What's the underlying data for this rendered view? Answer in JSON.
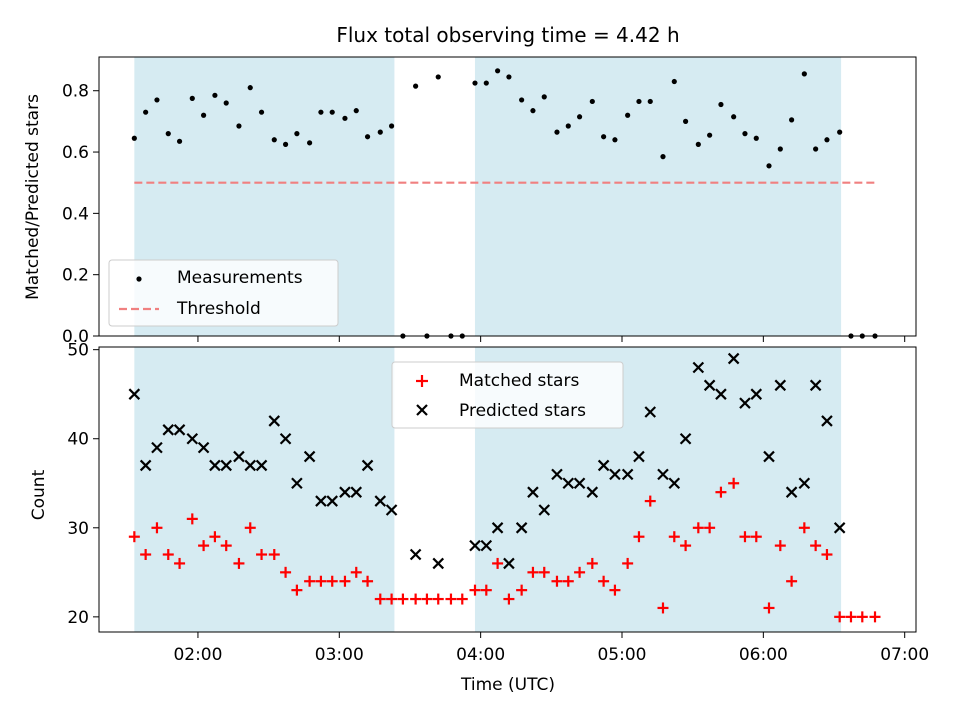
{
  "figure": {
    "title": "Flux total observing time = 4.42 h",
    "xlabel": "Time (UTC)",
    "xticks": [
      {
        "t": 2.0,
        "label": "02:00"
      },
      {
        "t": 3.0,
        "label": "03:00"
      },
      {
        "t": 4.0,
        "label": "04:00"
      },
      {
        "t": 5.0,
        "label": "05:00"
      },
      {
        "t": 6.0,
        "label": "06:00"
      },
      {
        "t": 7.0,
        "label": "07:00"
      }
    ],
    "xlim": [
      1.3,
      7.08
    ],
    "shaded_intervals": [
      [
        1.55,
        3.39
      ],
      [
        3.96,
        6.55
      ]
    ],
    "shade_color": "#add8e6"
  },
  "chart_data": [
    {
      "type": "scatter",
      "panel": "top",
      "ylabel": "Matched/Predicted stars",
      "ylim": [
        0,
        0.91
      ],
      "yticks": [
        {
          "v": 0.0,
          "label": "0.0"
        },
        {
          "v": 0.2,
          "label": "0.2"
        },
        {
          "v": 0.4,
          "label": "0.4"
        },
        {
          "v": 0.6,
          "label": "0.6"
        },
        {
          "v": 0.8,
          "label": "0.8"
        }
      ],
      "legend": {
        "position": "lower-left",
        "measurements_label": "Measurements",
        "threshold_label": "Threshold"
      },
      "threshold": {
        "value": 0.5,
        "x_range": [
          1.55,
          6.8
        ],
        "color": "#f08080"
      },
      "measurements": {
        "color": "#000000",
        "x": [
          1.55,
          1.63,
          1.71,
          1.79,
          1.87,
          1.96,
          2.04,
          2.12,
          2.2,
          2.29,
          2.37,
          2.45,
          2.54,
          2.62,
          2.7,
          2.79,
          2.87,
          2.95,
          3.04,
          3.12,
          3.2,
          3.29,
          3.37,
          3.45,
          3.54,
          3.62,
          3.7,
          3.79,
          3.87,
          3.96,
          4.04,
          4.12,
          4.2,
          4.29,
          4.37,
          4.45,
          4.54,
          4.62,
          4.7,
          4.79,
          4.87,
          4.95,
          5.04,
          5.12,
          5.2,
          5.29,
          5.37,
          5.45,
          5.54,
          5.62,
          5.7,
          5.79,
          5.87,
          5.95,
          6.04,
          6.12,
          6.2,
          6.29,
          6.37,
          6.45,
          6.54,
          6.62,
          6.7,
          6.79
        ],
        "y": [
          0.645,
          0.73,
          0.77,
          0.66,
          0.635,
          0.775,
          0.72,
          0.785,
          0.76,
          0.685,
          0.81,
          0.73,
          0.64,
          0.625,
          0.66,
          0.63,
          0.73,
          0.73,
          0.71,
          0.735,
          0.65,
          0.665,
          0.685,
          0.0,
          0.815,
          0.0,
          0.845,
          0.0,
          0.0,
          0.825,
          0.825,
          0.865,
          0.845,
          0.77,
          0.735,
          0.78,
          0.665,
          0.685,
          0.715,
          0.765,
          0.65,
          0.64,
          0.72,
          0.765,
          0.765,
          0.585,
          0.83,
          0.7,
          0.625,
          0.655,
          0.755,
          0.715,
          0.66,
          0.645,
          0.555,
          0.61,
          0.705,
          0.855,
          0.61,
          0.64,
          0.665,
          0.0,
          0.0,
          0.0
        ]
      }
    },
    {
      "type": "scatter",
      "panel": "bottom",
      "ylabel": "Count",
      "ylim": [
        18.3,
        50.3
      ],
      "yticks": [
        {
          "v": 20,
          "label": "20"
        },
        {
          "v": 30,
          "label": "30"
        },
        {
          "v": 40,
          "label": "40"
        },
        {
          "v": 50,
          "label": "50"
        }
      ],
      "legend": {
        "position": "upper-center"
      },
      "series": [
        {
          "name": "Matched stars",
          "marker": "plus",
          "color": "#ff0000",
          "x": [
            1.55,
            1.63,
            1.71,
            1.79,
            1.87,
            1.96,
            2.04,
            2.12,
            2.2,
            2.29,
            2.37,
            2.45,
            2.54,
            2.62,
            2.7,
            2.79,
            2.87,
            2.95,
            3.04,
            3.12,
            3.2,
            3.29,
            3.37,
            3.45,
            3.54,
            3.62,
            3.7,
            3.79,
            3.87,
            3.96,
            4.04,
            4.12,
            4.2,
            4.29,
            4.37,
            4.45,
            4.54,
            4.62,
            4.7,
            4.79,
            4.87,
            4.95,
            5.04,
            5.12,
            5.2,
            5.29,
            5.37,
            5.45,
            5.54,
            5.62,
            5.7,
            5.79,
            5.87,
            5.95,
            6.04,
            6.12,
            6.2,
            6.29,
            6.37,
            6.45,
            6.54,
            6.62,
            6.7,
            6.79
          ],
          "values": [
            29,
            27,
            30,
            27,
            26,
            31,
            28,
            29,
            28,
            26,
            30,
            27,
            27,
            25,
            23,
            24,
            24,
            24,
            24,
            25,
            24,
            22,
            22,
            22,
            22,
            22,
            22,
            22,
            22,
            23,
            23,
            26,
            22,
            23,
            25,
            25,
            24,
            24,
            25,
            26,
            24,
            23,
            26,
            29,
            33,
            21,
            29,
            28,
            30,
            30,
            34,
            35,
            29,
            29,
            21,
            28,
            24,
            30,
            28,
            27,
            20,
            20,
            20,
            20
          ]
        },
        {
          "name": "Predicted stars",
          "marker": "x",
          "color": "#000000",
          "x": [
            1.55,
            1.63,
            1.71,
            1.79,
            1.87,
            1.96,
            2.04,
            2.12,
            2.2,
            2.29,
            2.37,
            2.45,
            2.54,
            2.62,
            2.7,
            2.79,
            2.87,
            2.95,
            3.04,
            3.12,
            3.2,
            3.29,
            3.37,
            3.54,
            3.7,
            3.96,
            4.04,
            4.12,
            4.2,
            4.29,
            4.37,
            4.45,
            4.54,
            4.62,
            4.7,
            4.79,
            4.87,
            4.95,
            5.04,
            5.12,
            5.2,
            5.29,
            5.37,
            5.45,
            5.54,
            5.62,
            5.7,
            5.79,
            5.87,
            5.95,
            6.04,
            6.12,
            6.2,
            6.29,
            6.37,
            6.45,
            6.54
          ],
          "values": [
            45,
            37,
            39,
            41,
            41,
            40,
            39,
            37,
            37,
            38,
            37,
            37,
            42,
            40,
            35,
            38,
            33,
            33,
            34,
            34,
            37,
            33,
            32,
            27,
            26,
            28,
            28,
            30,
            26,
            30,
            34,
            32,
            36,
            35,
            35,
            34,
            37,
            36,
            36,
            38,
            43,
            36,
            35,
            40,
            48,
            46,
            45,
            49,
            44,
            45,
            38,
            46,
            34,
            35,
            46,
            42,
            30
          ]
        }
      ]
    }
  ]
}
